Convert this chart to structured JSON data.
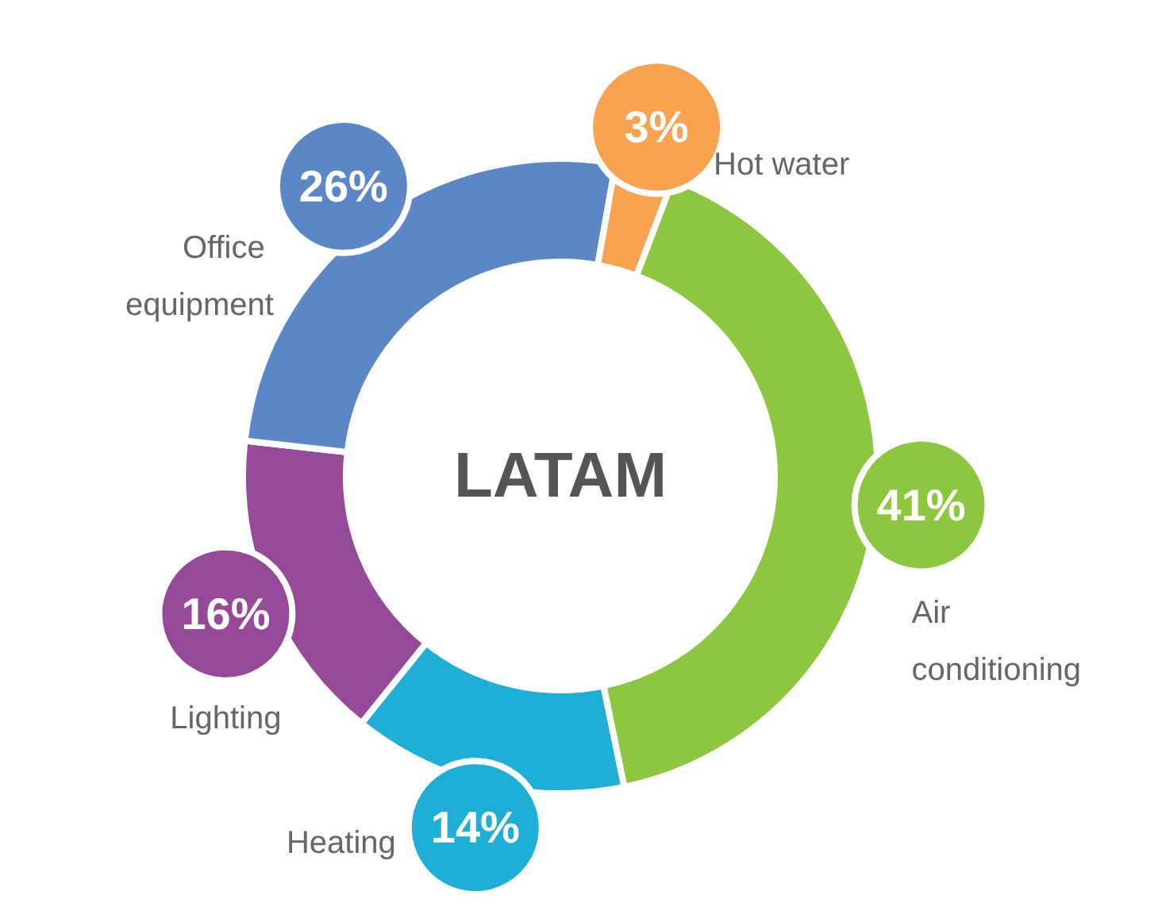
{
  "chart_data": {
    "type": "donut",
    "title": "LATAM",
    "categories": [
      "Hot water",
      "Air conditioning",
      "Heating",
      "Lighting",
      "Office equipment"
    ],
    "values": [
      3,
      41,
      14,
      16,
      26
    ],
    "value_labels": [
      "3%",
      "41%",
      "14%",
      "16%",
      "26%"
    ],
    "colors": [
      "#f9a350",
      "#8dc63f",
      "#1fafd6",
      "#954a97",
      "#5b87c6"
    ],
    "legend": false
  }
}
